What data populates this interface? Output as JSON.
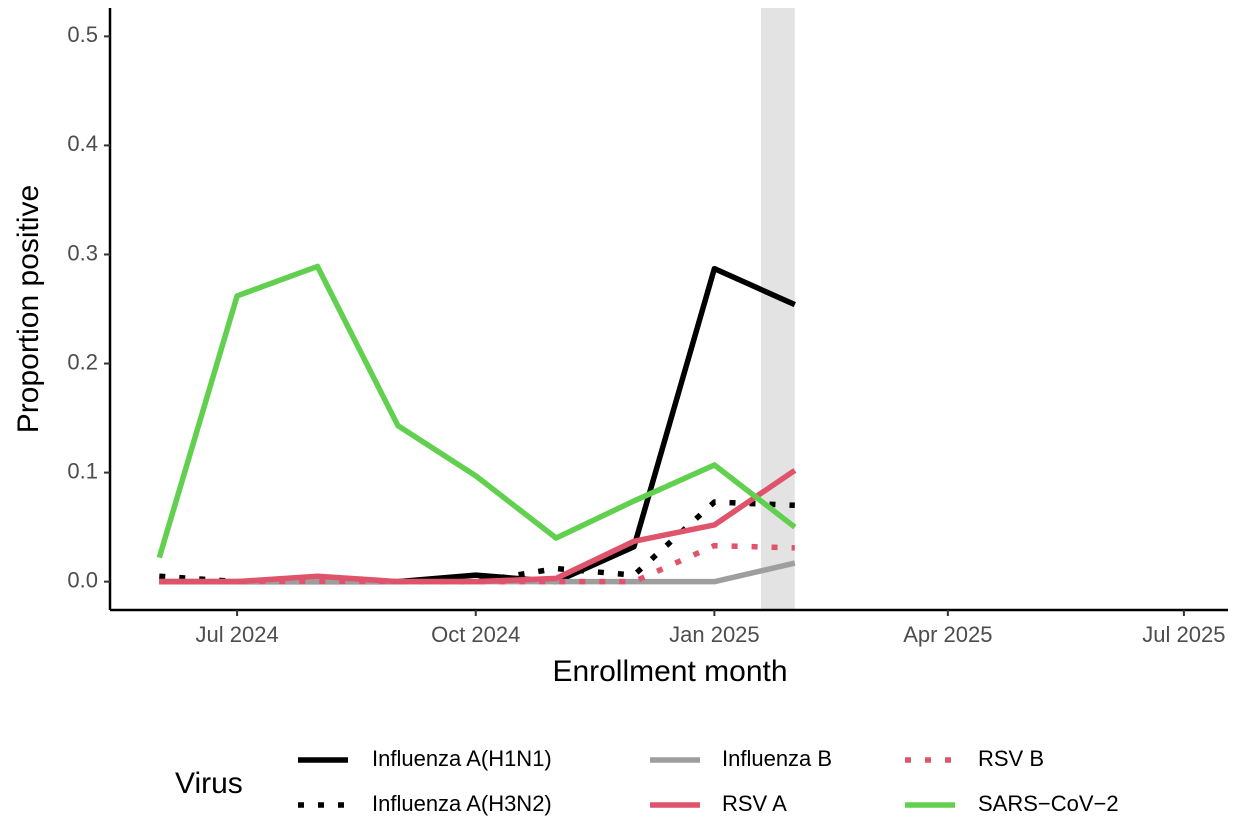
{
  "chart_data": {
    "type": "line",
    "x_label": "Enrollment month",
    "y_label": "Proportion positive",
    "x": [
      "2024-06",
      "2024-07",
      "2024-08",
      "2024-09",
      "2024-10",
      "2024-11",
      "2024-12",
      "2025-01",
      "2025-02"
    ],
    "series": [
      {
        "name": "Influenza A(H1N1)",
        "color": "#000000",
        "dash": "solid",
        "values": [
          0,
          0,
          0,
          0,
          0.006,
          0,
          0.032,
          0.287,
          0.254
        ]
      },
      {
        "name": "Influenza A(H3N2)",
        "color": "#000000",
        "dash": "dotted",
        "values": [
          0.005,
          0,
          0,
          0,
          0,
          0.012,
          0.006,
          0.073,
          0.07
        ]
      },
      {
        "name": "Influenza B",
        "color": "#9e9e9e",
        "dash": "solid",
        "values": [
          0,
          0,
          0,
          0,
          0,
          0,
          0,
          0,
          0.017
        ]
      },
      {
        "name": "RSV A",
        "color": "#df536b",
        "dash": "solid",
        "values": [
          0,
          0,
          0.005,
          0,
          0,
          0.003,
          0.037,
          0.052,
          0.102
        ]
      },
      {
        "name": "RSV B",
        "color": "#df536b",
        "dash": "dotted",
        "values": [
          0,
          0,
          0,
          0,
          0,
          0,
          0,
          0.033,
          0.031
        ]
      },
      {
        "name": "SARS−CoV−2",
        "color": "#61d04f",
        "dash": "solid",
        "values": [
          0.022,
          0.262,
          0.289,
          0.143,
          0.097,
          0.04,
          0.074,
          0.107,
          0.05
        ]
      }
    ],
    "xlim": [
      "2024-05-13",
      "2025-07-18"
    ],
    "xticks": [
      {
        "value": "2024-07-01",
        "label": "Jul 2024"
      },
      {
        "value": "2024-10-01",
        "label": "Oct 2024"
      },
      {
        "value": "2025-01-01",
        "label": "Jan 2025"
      },
      {
        "value": "2025-04-01",
        "label": "Apr 2025"
      },
      {
        "value": "2025-07-01",
        "label": "Jul 2025"
      }
    ],
    "ylim": [
      -0.026,
      0.526
    ],
    "yticks": [
      {
        "value": 0,
        "label": "0.0"
      },
      0.1,
      0.2,
      0.3,
      0.4,
      0.5
    ],
    "highlight_span": [
      "2025-01-19",
      "2025-02-01"
    ],
    "highlight_color": "#e3e3e3",
    "legend_title": "Virus",
    "legend_position": "bottom",
    "grid": false
  }
}
